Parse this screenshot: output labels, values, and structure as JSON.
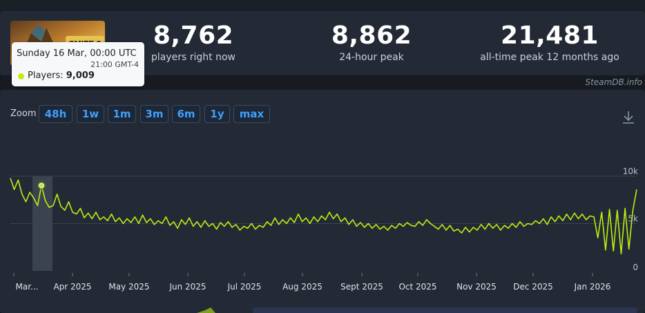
{
  "stats": {
    "current": {
      "value": "8,762",
      "label": "players right now"
    },
    "peak24": {
      "value": "8,862",
      "label": "24-hour peak"
    },
    "alltime": {
      "value": "21,481",
      "label": "all-time peak 12 months ago"
    }
  },
  "credit": "SteamDB.info",
  "zoom": {
    "label": "Zoom",
    "buttons": [
      "48h",
      "1w",
      "1m",
      "3m",
      "6m",
      "1y",
      "max"
    ]
  },
  "tooltip": {
    "date": "Sunday 16 Mar, 00:00 UTC",
    "local_time": "21:00 GMT-4",
    "series_label": "Players:",
    "value_label": "9,009"
  },
  "colors": {
    "series": "#beee11",
    "accent": "#3ea0ff",
    "background": "#232a36"
  },
  "icons": {
    "download": "download-icon",
    "thumbnail": "game-thumbnail"
  },
  "chart_data": {
    "type": "line",
    "y_ticks": [
      "0",
      "5k",
      "10k"
    ],
    "y_tick_values": [
      0,
      5000,
      10000
    ],
    "x_ticks": [
      "Mar...",
      "Apr 2025",
      "May 2025",
      "Jun 2025",
      "Jul 2025",
      "Aug 2025",
      "Sept 2025",
      "Oct 2025",
      "Nov 2025",
      "Dec 2025",
      "Jan 2026"
    ],
    "ylim": [
      0,
      10000
    ],
    "grid": true,
    "series": [
      {
        "x_start": "2025-03-13",
        "x_end": "2026-02-01",
        "values": [
          9800,
          8600,
          9600,
          8100,
          7300,
          8300,
          7700,
          6900,
          9009,
          7400,
          6700,
          6900,
          8100,
          6800,
          6400,
          7300,
          6200,
          6000,
          6600,
          5600,
          6100,
          5500,
          6200,
          5400,
          5700,
          5300,
          6000,
          5200,
          5600,
          5000,
          5500,
          5100,
          5700,
          5000,
          5900,
          5100,
          5500,
          4900,
          5300,
          5000,
          5700,
          4800,
          5200,
          4500,
          5400,
          4900,
          5600,
          4700,
          5200,
          4600,
          5300,
          4700,
          5000,
          4400,
          5100,
          4700,
          5200,
          4600,
          4900,
          4300,
          4700,
          4500,
          5000,
          4400,
          4800,
          4600,
          5200,
          4800,
          5600,
          4900,
          5400,
          5000,
          5600,
          5100,
          6000,
          5200,
          5600,
          5000,
          5700,
          5200,
          5800,
          5400,
          6200,
          5500,
          6000,
          5200,
          5600,
          4900,
          5400,
          4700,
          5100,
          4600,
          5000,
          4500,
          4900,
          4400,
          4700,
          4300,
          4800,
          4500,
          5000,
          4700,
          5100,
          4800,
          4700,
          5200,
          4800,
          5400,
          5000,
          4700,
          4400,
          4900,
          4300,
          4800,
          4200,
          4400,
          4000,
          4600,
          4100,
          4600,
          4300,
          4900,
          4400,
          5000,
          4500,
          4900,
          4300,
          4800,
          4500,
          5000,
          4600,
          5200,
          4700,
          5000,
          4900,
          5300,
          5000,
          5500,
          4900,
          5700,
          5200,
          5800,
          5300,
          6000,
          5400,
          6100,
          5500,
          6000,
          5400,
          5800,
          5700,
          3500,
          6200,
          2200,
          6500,
          2100,
          6400,
          1800,
          6600,
          2300,
          6400,
          8600
        ]
      }
    ]
  }
}
